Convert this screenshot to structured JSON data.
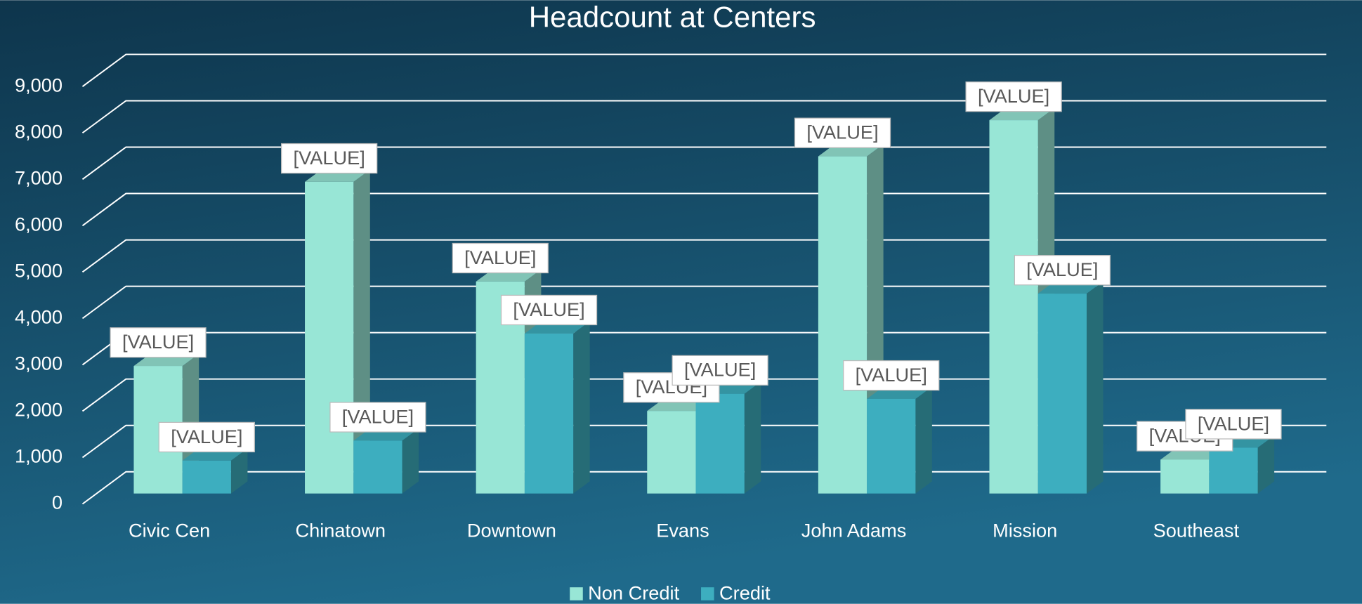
{
  "chart_data": {
    "type": "bar3d",
    "title": "Headcount at Centers",
    "categories": [
      "Civic Cen",
      "Chinatown",
      "Downtown",
      "Evans",
      "John Adams",
      "Mission",
      "Southeast"
    ],
    "series": [
      {
        "name": "Non Credit",
        "color": "#98e6d6",
        "values": [
          2750,
          6720,
          4570,
          1780,
          7270,
          8050,
          730
        ],
        "value_labels": [
          "[VALUE]",
          "[VALUE]",
          "[VALUE]",
          "[VALUE]",
          "[VALUE]",
          "[VALUE]",
          "[VALUE]"
        ]
      },
      {
        "name": "Credit",
        "color": "#3daebf",
        "values": [
          710,
          1140,
          3450,
          2150,
          2040,
          4310,
          990
        ],
        "value_labels": [
          "[VALUE]",
          "[VALUE]",
          "[VALUE]",
          "[VALUE]",
          "[VALUE]",
          "[VALUE]",
          "[VALUE]"
        ]
      }
    ],
    "ylim": [
      0,
      9000
    ],
    "yticks": [
      0,
      {
        "value": 1000,
        "label": "1,000"
      },
      {
        "value": 2000,
        "label": "2,000"
      },
      {
        "value": 3000,
        "label": "3,000"
      },
      {
        "value": 4000,
        "label": "4,000"
      },
      {
        "value": 5000,
        "label": "5,000"
      },
      {
        "value": 6000,
        "label": "6,000"
      },
      {
        "value": 7000,
        "label": "7,000"
      },
      {
        "value": 8000,
        "label": "8,000"
      },
      {
        "value": 9000,
        "label": "9,000"
      }
    ],
    "grid": true,
    "legend": "bottom"
  }
}
